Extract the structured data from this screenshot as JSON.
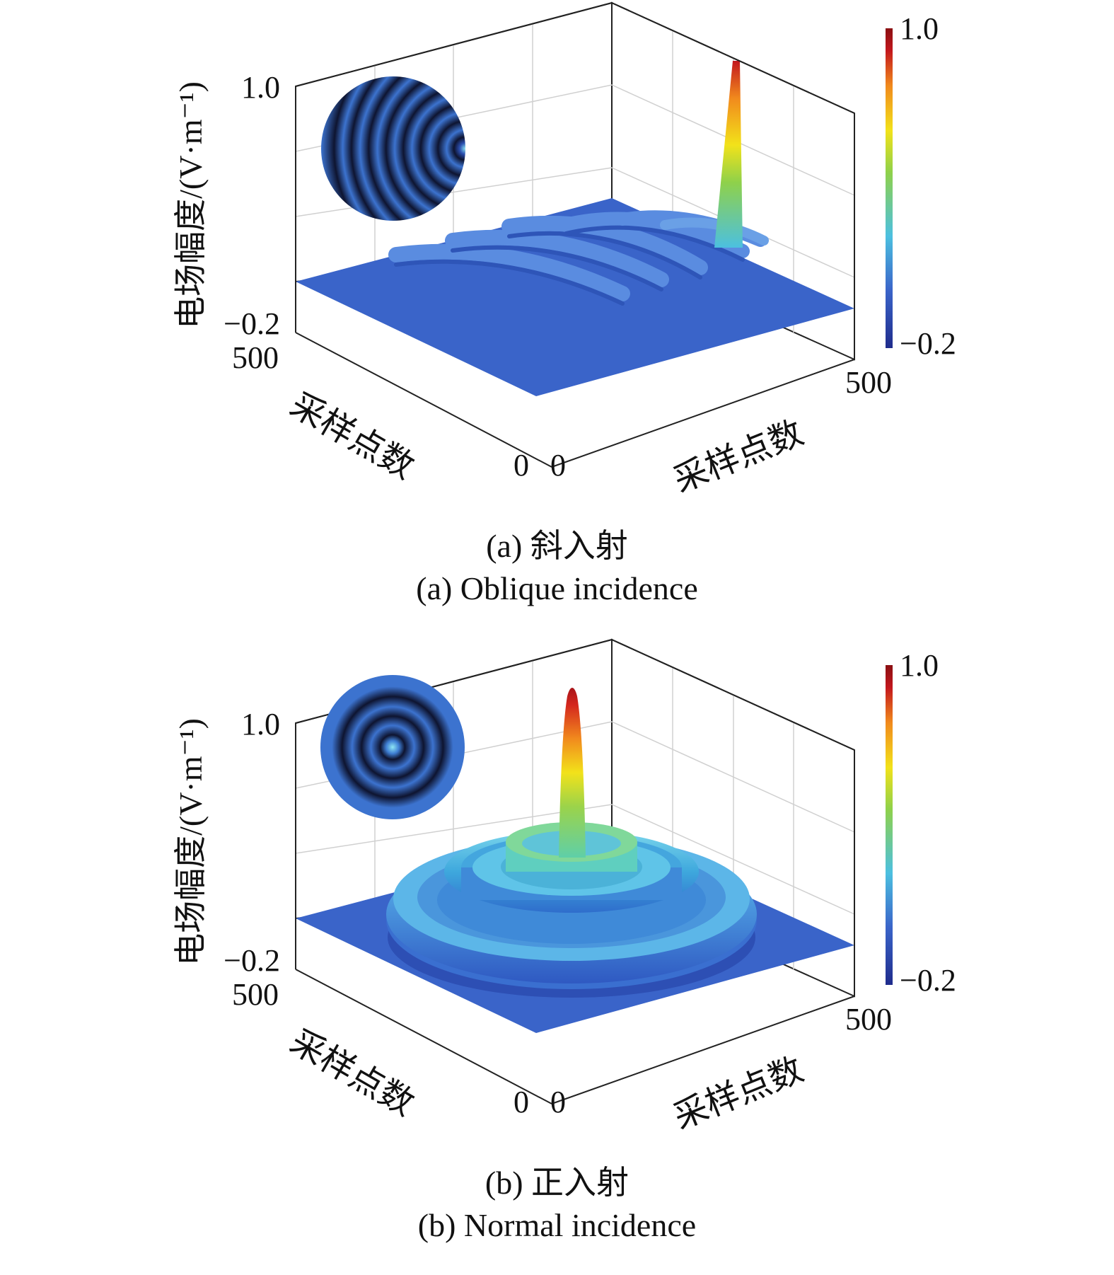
{
  "chart_data": [
    {
      "type": "surface3d",
      "panel": "a",
      "caption_cn": "(a) 斜入射",
      "caption_en": "(a) Oblique incidence",
      "zlabel": "电场幅度/(V·m⁻¹)",
      "xlabel": "采样点数",
      "ylabel": "采样点数",
      "z_ticks": [
        "1.0",
        "−0.2"
      ],
      "x_ticks": [
        "0",
        "500"
      ],
      "y_ticks": [
        "0",
        "500"
      ],
      "zlim": [
        -0.2,
        1.0
      ],
      "xlim": [
        0,
        500
      ],
      "ylim": [
        0,
        500
      ],
      "grid": true,
      "colorbar": {
        "ticks": [
          "1.0",
          "−0.2"
        ],
        "range": [
          -0.2,
          1.0
        ],
        "colormap": "jet",
        "placement": "right"
      },
      "inset": "concentric arcs (oblique incidence pattern)",
      "peak": {
        "z": 1.0
      },
      "ring_amplitude": 0.07
    },
    {
      "type": "surface3d",
      "panel": "b",
      "caption_cn": "(b) 正入射",
      "caption_en": "(b) Normal incidence",
      "zlabel": "电场幅度/(V·m⁻¹)",
      "xlabel": "采样点数",
      "ylabel": "采样点数",
      "z_ticks": [
        "1.0",
        "−0.2"
      ],
      "x_ticks": [
        "0",
        "500"
      ],
      "y_ticks": [
        "0",
        "500"
      ],
      "zlim": [
        -0.2,
        1.0
      ],
      "xlim": [
        0,
        500
      ],
      "ylim": [
        0,
        500
      ],
      "grid": true,
      "colorbar": {
        "ticks": [
          "1.0",
          "−0.2"
        ],
        "range": [
          -0.2,
          1.0
        ],
        "colormap": "jet",
        "placement": "right"
      },
      "inset": "concentric rings (normal incidence pattern)",
      "peak": {
        "z": 0.9
      },
      "ring_amplitude": 0.2
    }
  ],
  "colors": {
    "jet_dark_blue": "#1f2c8c",
    "jet_blue": "#3a64c9",
    "jet_cyan": "#4cc0e0",
    "jet_green": "#8fd14a",
    "jet_yellow": "#f2e21a",
    "jet_orange": "#f18a1d",
    "jet_red": "#c3171d",
    "jet_dark_red": "#8a0f12",
    "axis": "#111111",
    "grid": "#cfcfcf"
  }
}
